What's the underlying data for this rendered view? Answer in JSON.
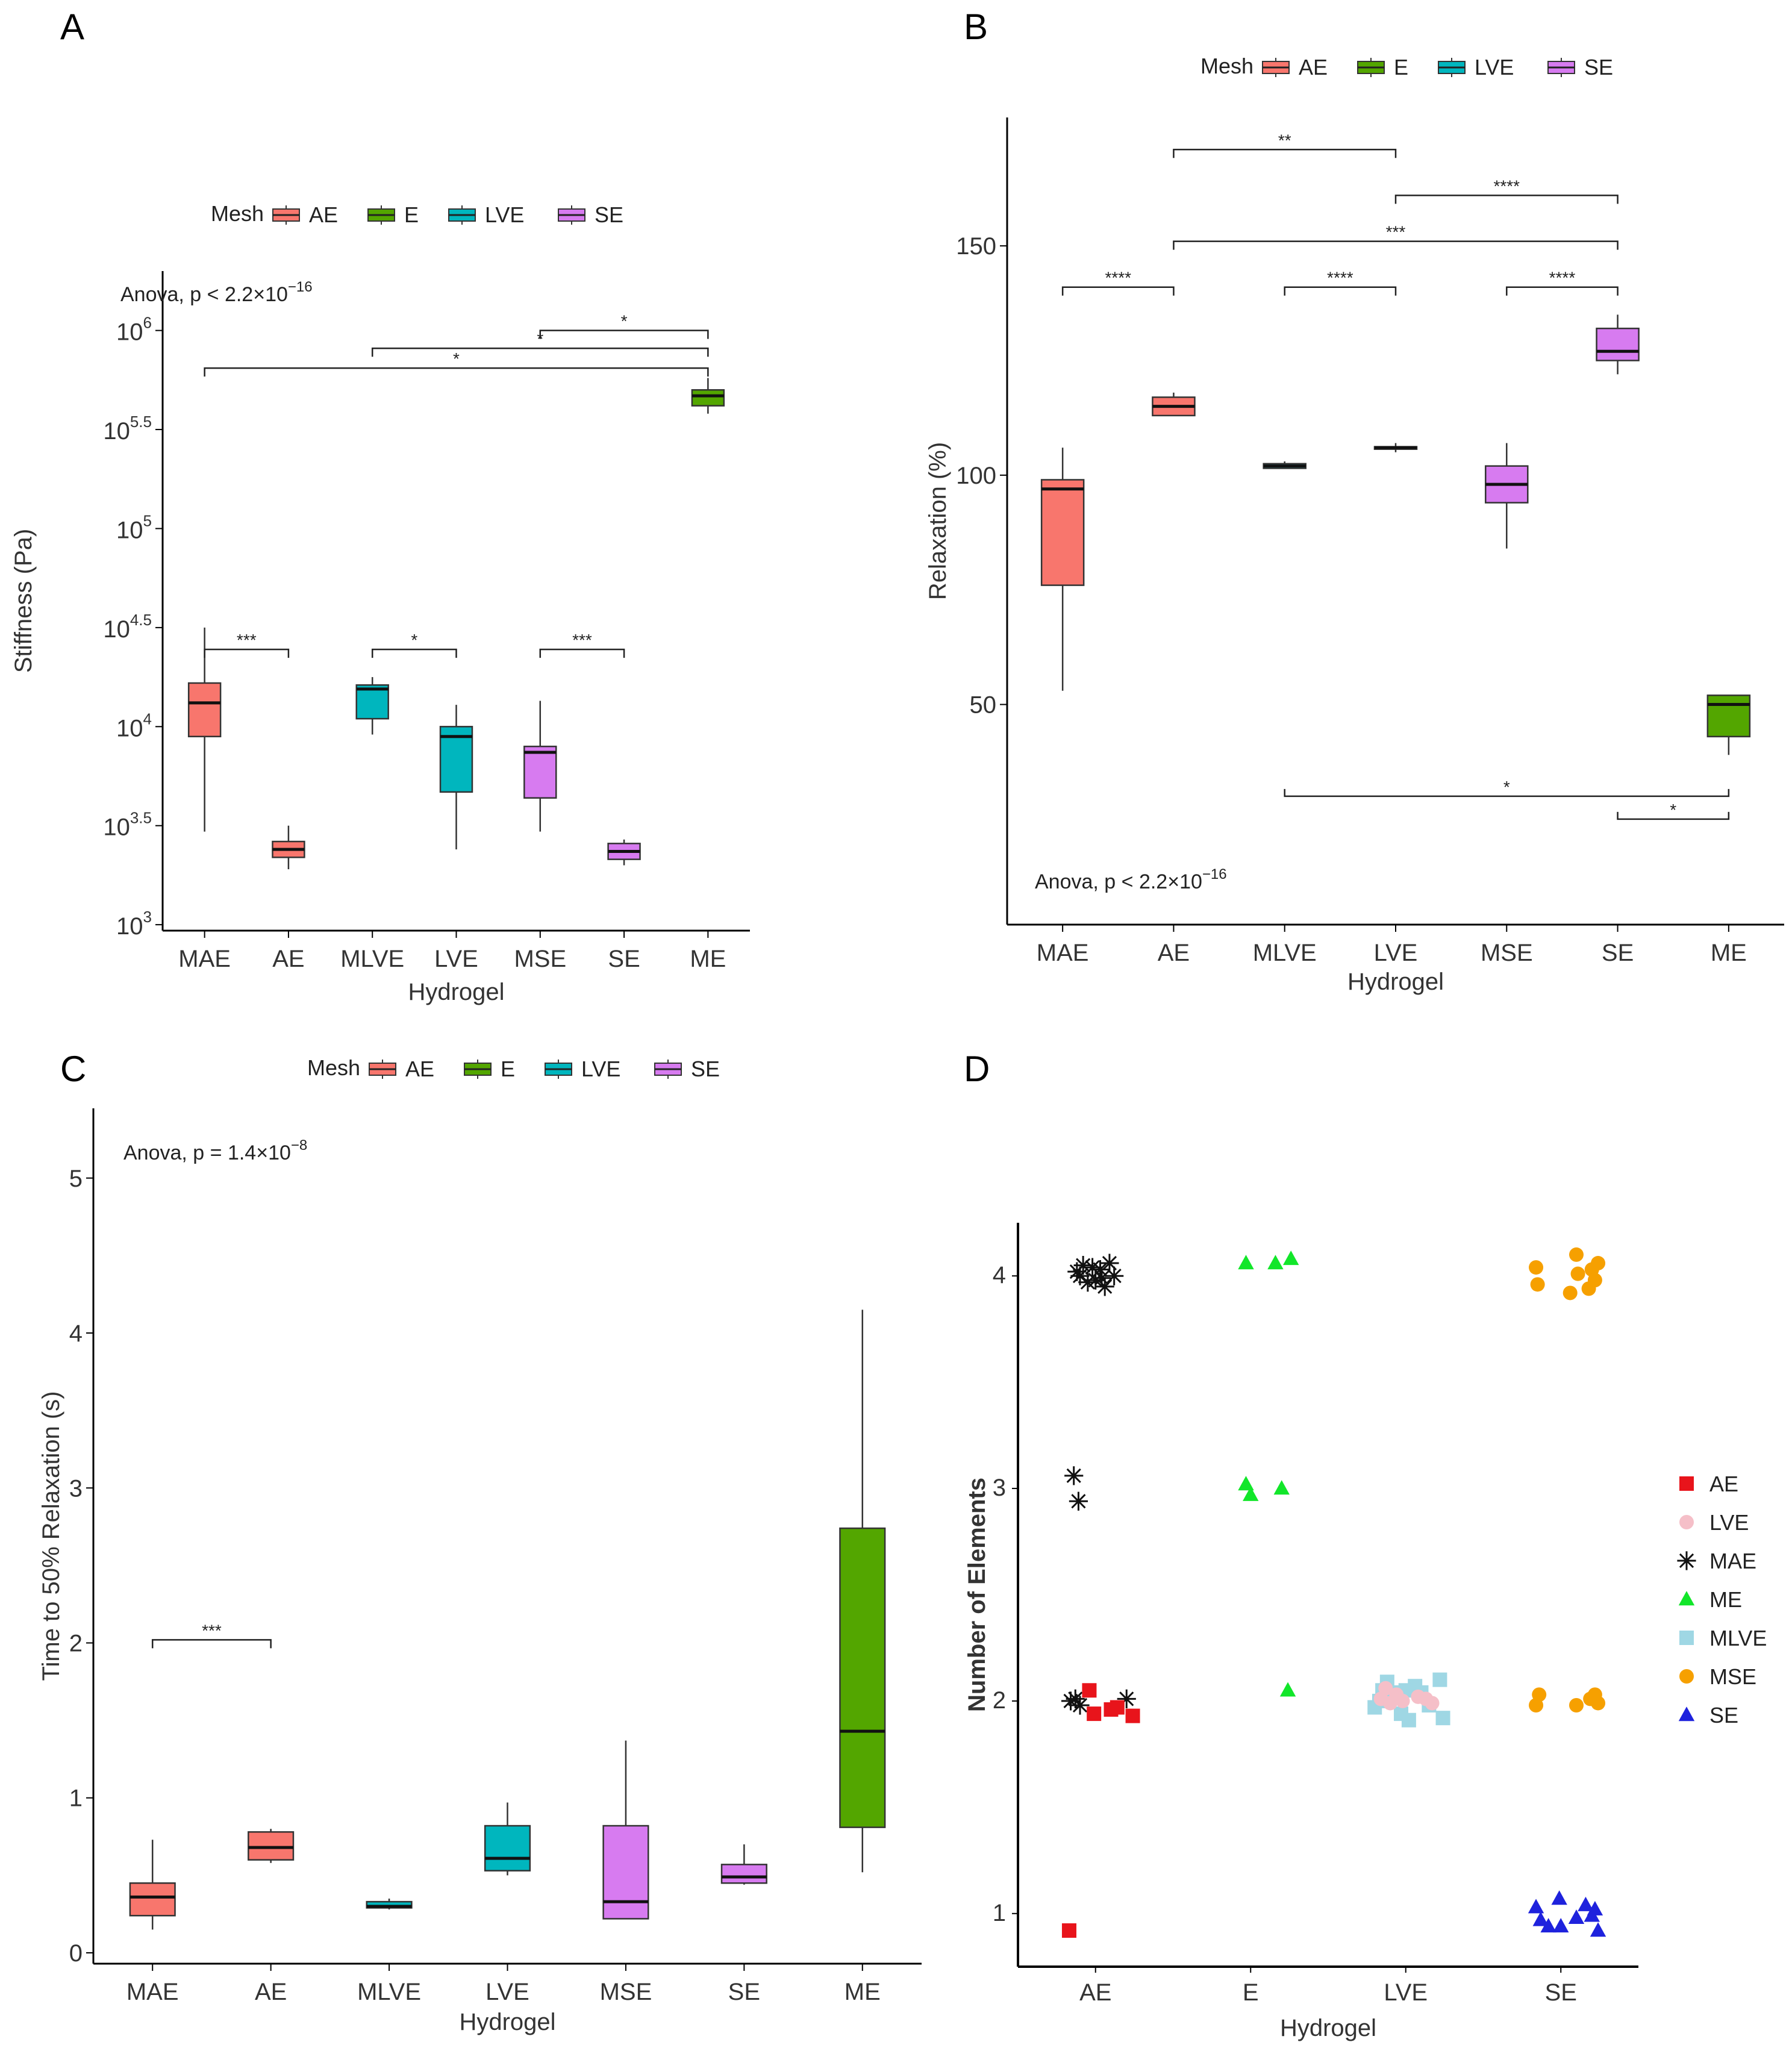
{
  "colors": {
    "AE": "#F8766D",
    "E": "#53A600",
    "LVE": "#00B6BE",
    "SE": "#D77BF0"
  },
  "legend": {
    "title": "Mesh",
    "entries": [
      "AE",
      "E",
      "LVE",
      "SE"
    ]
  },
  "chart_data": [
    {
      "panel": "A",
      "type": "box",
      "xlabel": "Hydrogel",
      "ylabel": "Stiffness (Pa)",
      "yscale": "log10",
      "ylim": [
        2.97,
        6.3
      ],
      "yticks": [
        {
          "v": 3,
          "base": "10",
          "exp": "3"
        },
        {
          "v": 3.5,
          "base": "10",
          "exp": "3.5"
        },
        {
          "v": 4,
          "base": "10",
          "exp": "4"
        },
        {
          "v": 4.5,
          "base": "10",
          "exp": "4.5"
        },
        {
          "v": 5,
          "base": "10",
          "exp": "5"
        },
        {
          "v": 5.5,
          "base": "10",
          "exp": "5.5"
        },
        {
          "v": 6,
          "base": "10",
          "exp": "6"
        }
      ],
      "anova": {
        "text": "Anova, p < 2.2×10",
        "exp": "−16"
      },
      "categories": [
        "MAE",
        "AE",
        "MLVE",
        "LVE",
        "MSE",
        "SE",
        "ME"
      ],
      "boxes": [
        {
          "cat": "MAE",
          "mesh": "AE",
          "min": 3.47,
          "q1": 3.95,
          "med": 4.12,
          "q3": 4.22,
          "max": 4.5
        },
        {
          "cat": "AE",
          "mesh": "AE",
          "min": 3.28,
          "q1": 3.34,
          "med": 3.38,
          "q3": 3.42,
          "max": 3.5
        },
        {
          "cat": "MLVE",
          "mesh": "LVE",
          "min": 3.96,
          "q1": 4.04,
          "med": 4.19,
          "q3": 4.21,
          "max": 4.25
        },
        {
          "cat": "LVE",
          "mesh": "LVE",
          "min": 3.38,
          "q1": 3.67,
          "med": 3.95,
          "q3": 4.0,
          "max": 4.11
        },
        {
          "cat": "MSE",
          "mesh": "SE",
          "min": 3.47,
          "q1": 3.64,
          "med": 3.87,
          "q3": 3.9,
          "max": 4.13
        },
        {
          "cat": "SE",
          "mesh": "SE",
          "min": 3.3,
          "q1": 3.33,
          "med": 3.37,
          "q3": 3.41,
          "max": 3.43
        },
        {
          "cat": "ME",
          "mesh": "E",
          "min": 5.58,
          "q1": 5.62,
          "med": 5.67,
          "q3": 5.7,
          "max": 5.76
        }
      ],
      "brackets": [
        {
          "from": "MAE",
          "to": "AE",
          "y": 4.39,
          "label": "***"
        },
        {
          "from": "MLVE",
          "to": "LVE",
          "y": 4.39,
          "label": "*"
        },
        {
          "from": "MSE",
          "to": "SE",
          "y": 4.39,
          "label": "***"
        },
        {
          "from": "MSE",
          "to": "ME",
          "y": 6.0,
          "label": "*"
        },
        {
          "from": "MLVE",
          "to": "ME",
          "y": 5.91,
          "label": "*"
        },
        {
          "from": "MAE",
          "to": "ME",
          "y": 5.81,
          "label": "*"
        }
      ]
    },
    {
      "panel": "B",
      "type": "box",
      "xlabel": "Hydrogel",
      "ylabel": "Relaxation (%)",
      "yscale": "linear",
      "ylim": [
        2,
        178
      ],
      "yticks": [
        {
          "v": 50,
          "label": "50"
        },
        {
          "v": 100,
          "label": "100"
        },
        {
          "v": 150,
          "label": "150"
        }
      ],
      "anova": {
        "text": "Anova, p < 2.2×10",
        "exp": "−16"
      },
      "categories": [
        "MAE",
        "AE",
        "MLVE",
        "LVE",
        "MSE",
        "SE",
        "ME"
      ],
      "boxes": [
        {
          "cat": "MAE",
          "mesh": "AE",
          "min": 53,
          "q1": 76,
          "med": 97,
          "q3": 99,
          "max": 106
        },
        {
          "cat": "AE",
          "mesh": "AE",
          "min": 113,
          "q1": 113,
          "med": 115,
          "q3": 117,
          "max": 118
        },
        {
          "cat": "MLVE",
          "mesh": "LVE",
          "min": 101.5,
          "q1": 101.5,
          "med": 102,
          "q3": 102.5,
          "max": 103
        },
        {
          "cat": "LVE",
          "mesh": "LVE",
          "min": 105,
          "q1": 105.8,
          "med": 106,
          "q3": 106.2,
          "max": 107
        },
        {
          "cat": "MSE",
          "mesh": "SE",
          "min": 84,
          "q1": 94,
          "med": 98,
          "q3": 102,
          "max": 107
        },
        {
          "cat": "SE",
          "mesh": "SE",
          "min": 122,
          "q1": 125,
          "med": 127,
          "q3": 132,
          "max": 135
        },
        {
          "cat": "ME",
          "mesh": "E",
          "min": 39,
          "q1": 43,
          "med": 50,
          "q3": 52,
          "max": 52
        }
      ],
      "brackets": [
        {
          "from": "AE",
          "to": "LVE",
          "y": 171,
          "label": "**"
        },
        {
          "from": "LVE",
          "to": "SE",
          "y": 161,
          "label": "****"
        },
        {
          "from": "AE",
          "to": "SE",
          "y": 151,
          "label": "***"
        },
        {
          "from": "MAE",
          "to": "AE",
          "y": 141,
          "label": "****"
        },
        {
          "from": "MLVE",
          "to": "LVE",
          "y": 141,
          "label": "****"
        },
        {
          "from": "MSE",
          "to": "SE",
          "y": 141,
          "label": "****"
        },
        {
          "from": "MLVE",
          "to": "ME",
          "y": 30,
          "label": "*",
          "down": true
        },
        {
          "from": "SE",
          "to": "ME",
          "y": 25,
          "label": "*",
          "down": true
        }
      ]
    },
    {
      "panel": "C",
      "type": "box",
      "xlabel": "Hydrogel",
      "ylabel": "Time to 50% Relaxation (s)",
      "yscale": "linear",
      "ylim": [
        -0.07,
        5.45
      ],
      "yticks": [
        {
          "v": 0,
          "label": "0"
        },
        {
          "v": 1,
          "label": "1"
        },
        {
          "v": 2,
          "label": "2"
        },
        {
          "v": 3,
          "label": "3"
        },
        {
          "v": 4,
          "label": "4"
        },
        {
          "v": 5,
          "label": "5"
        }
      ],
      "anova": {
        "text": "Anova, p = 1.4×10",
        "exp": "−8"
      },
      "categories": [
        "MAE",
        "AE",
        "MLVE",
        "LVE",
        "MSE",
        "SE",
        "ME"
      ],
      "boxes": [
        {
          "cat": "MAE",
          "mesh": "AE",
          "min": 0.15,
          "q1": 0.24,
          "med": 0.36,
          "q3": 0.45,
          "max": 0.73
        },
        {
          "cat": "AE",
          "mesh": "AE",
          "min": 0.58,
          "q1": 0.6,
          "med": 0.68,
          "q3": 0.78,
          "max": 0.8
        },
        {
          "cat": "MLVE",
          "mesh": "LVE",
          "min": 0.28,
          "q1": 0.29,
          "med": 0.3,
          "q3": 0.33,
          "max": 0.35
        },
        {
          "cat": "LVE",
          "mesh": "LVE",
          "min": 0.5,
          "q1": 0.53,
          "med": 0.61,
          "q3": 0.82,
          "max": 0.97
        },
        {
          "cat": "MSE",
          "mesh": "SE",
          "min": 0.22,
          "q1": 0.22,
          "med": 0.33,
          "q3": 0.82,
          "max": 1.37
        },
        {
          "cat": "SE",
          "mesh": "SE",
          "min": 0.44,
          "q1": 0.45,
          "med": 0.49,
          "q3": 0.57,
          "max": 0.7
        },
        {
          "cat": "ME",
          "mesh": "E",
          "min": 0.52,
          "q1": 0.81,
          "med": 1.43,
          "q3": 2.74,
          "max": 4.15
        }
      ],
      "brackets": [
        {
          "from": "MAE",
          "to": "AE",
          "y": 2.02,
          "label": "***"
        }
      ]
    },
    {
      "panel": "D",
      "type": "scatter",
      "xlabel": "Hydrogel",
      "ylabel": "Number of Elements",
      "ylim": [
        0.75,
        4.25
      ],
      "categories": [
        "AE",
        "E",
        "LVE",
        "SE"
      ],
      "yticks": [
        {
          "v": 1,
          "label": "1"
        },
        {
          "v": 2,
          "label": "2"
        },
        {
          "v": 3,
          "label": "3"
        },
        {
          "v": 4,
          "label": "4"
        }
      ],
      "legend": [
        {
          "name": "AE",
          "shape": "square",
          "color": "#E8141B"
        },
        {
          "name": "LVE",
          "shape": "circle",
          "color": "#F5BFC8"
        },
        {
          "name": "MAE",
          "shape": "star",
          "color": "#111111"
        },
        {
          "name": "ME",
          "shape": "triangle",
          "color": "#12E62A"
        },
        {
          "name": "MLVE",
          "shape": "square",
          "color": "#9FD7E4"
        },
        {
          "name": "MSE",
          "shape": "circle",
          "color": "#F6A000"
        },
        {
          "name": "SE",
          "shape": "triangle",
          "color": "#1E22DD"
        }
      ],
      "points": [
        {
          "series": "MAE",
          "x": 1,
          "y": 4,
          "jitter": [
            [
              -0.12,
              0.02
            ],
            [
              -0.08,
              0.05
            ],
            [
              -0.05,
              -0.03
            ],
            [
              -0.02,
              0.04
            ],
            [
              0.0,
              -0.02
            ],
            [
              0.03,
              0.03
            ],
            [
              0.06,
              -0.05
            ],
            [
              0.09,
              0.06
            ],
            [
              0.12,
              0.0
            ],
            [
              -0.1,
              0.0
            ],
            [
              0.04,
              -0.01
            ]
          ]
        },
        {
          "series": "MAE",
          "x": 1,
          "y": 3,
          "jitter": [
            [
              -0.14,
              0.06
            ],
            [
              -0.11,
              -0.06
            ]
          ]
        },
        {
          "series": "MAE",
          "x": 1,
          "y": 2,
          "jitter": [
            [
              -0.16,
              0.0
            ],
            [
              -0.13,
              0.01
            ],
            [
              -0.1,
              -0.02
            ],
            [
              0.2,
              0.01
            ]
          ]
        },
        {
          "series": "AE",
          "x": 1,
          "y": 2,
          "jitter": [
            [
              -0.04,
              0.05
            ],
            [
              -0.01,
              -0.06
            ],
            [
              0.1,
              -0.04
            ],
            [
              0.14,
              -0.03
            ],
            [
              0.24,
              -0.07
            ]
          ]
        },
        {
          "series": "AE",
          "x": 1,
          "y": 1,
          "jitter": [
            [
              -0.17,
              -0.08
            ]
          ]
        },
        {
          "series": "ME",
          "x": 2,
          "y": 4,
          "jitter": [
            [
              -0.03,
              0.06
            ],
            [
              0.16,
              0.06
            ],
            [
              0.26,
              0.08
            ]
          ]
        },
        {
          "series": "ME",
          "x": 2,
          "y": 3,
          "jitter": [
            [
              -0.03,
              0.02
            ],
            [
              0.0,
              -0.03
            ],
            [
              0.2,
              0.0
            ]
          ]
        },
        {
          "series": "ME",
          "x": 2,
          "y": 2,
          "jitter": [
            [
              0.24,
              0.05
            ]
          ]
        },
        {
          "series": "MLVE",
          "x": 3,
          "y": 2,
          "jitter": [
            [
              -0.2,
              -0.03
            ],
            [
              -0.15,
              0.05
            ],
            [
              -0.12,
              0.09
            ],
            [
              -0.08,
              0.04
            ],
            [
              -0.03,
              -0.06
            ],
            [
              0.02,
              -0.09
            ],
            [
              0.06,
              0.07
            ],
            [
              0.1,
              0.04
            ],
            [
              0.15,
              -0.02
            ],
            [
              0.22,
              0.1
            ],
            [
              0.24,
              -0.08
            ],
            [
              -0.17,
              0.0
            ],
            [
              0.0,
              0.05
            ]
          ]
        },
        {
          "series": "LVE",
          "x": 3,
          "y": 2,
          "jitter": [
            [
              -0.16,
              0.01
            ],
            [
              -0.1,
              -0.01
            ],
            [
              -0.06,
              0.03
            ],
            [
              -0.02,
              0.0
            ],
            [
              0.08,
              0.02
            ],
            [
              0.13,
              0.01
            ],
            [
              0.17,
              -0.01
            ],
            [
              -0.13,
              0.06
            ]
          ]
        },
        {
          "series": "MSE",
          "x": 4,
          "y": 4,
          "jitter": [
            [
              -0.16,
              0.04
            ],
            [
              -0.15,
              -0.04
            ],
            [
              0.1,
              0.1
            ],
            [
              0.11,
              0.01
            ],
            [
              0.2,
              0.03
            ],
            [
              0.22,
              -0.02
            ],
            [
              0.24,
              0.06
            ],
            [
              0.06,
              -0.08
            ],
            [
              0.18,
              -0.06
            ]
          ]
        },
        {
          "series": "MSE",
          "x": 4,
          "y": 2,
          "jitter": [
            [
              -0.16,
              -0.02
            ],
            [
              -0.14,
              0.03
            ],
            [
              0.1,
              -0.02
            ],
            [
              0.19,
              0.01
            ],
            [
              0.22,
              0.03
            ],
            [
              0.24,
              -0.01
            ]
          ]
        },
        {
          "series": "SE",
          "x": 4,
          "y": 1,
          "jitter": [
            [
              -0.16,
              0.03
            ],
            [
              -0.13,
              -0.03
            ],
            [
              -0.08,
              -0.06
            ],
            [
              -0.01,
              0.07
            ],
            [
              0.0,
              -0.06
            ],
            [
              0.16,
              0.04
            ],
            [
              0.2,
              -0.01
            ],
            [
              0.22,
              0.02
            ],
            [
              0.24,
              -0.08
            ],
            [
              0.1,
              -0.02
            ]
          ]
        }
      ]
    }
  ]
}
